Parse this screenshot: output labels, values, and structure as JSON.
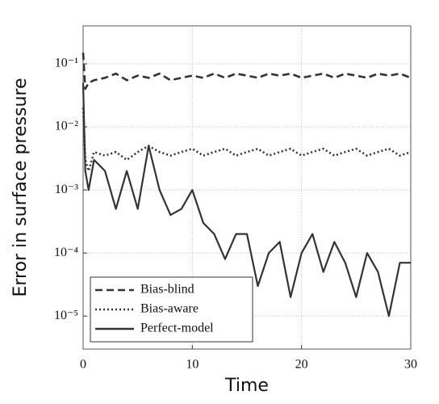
{
  "chart_data": {
    "type": "line",
    "xlabel": "Time",
    "ylabel": "Error in surface pressure",
    "x": [
      0,
      0.2,
      0.5,
      1,
      2,
      3,
      4,
      5,
      6,
      7,
      8,
      9,
      10,
      11,
      12,
      13,
      14,
      15,
      16,
      17,
      18,
      19,
      20,
      21,
      22,
      23,
      24,
      25,
      26,
      27,
      28,
      29,
      30
    ],
    "series": [
      {
        "name": "Bias-blind",
        "color": "#333333",
        "style": "dashed",
        "values": [
          0.15,
          0.04,
          0.05,
          0.055,
          0.06,
          0.07,
          0.055,
          0.065,
          0.06,
          0.07,
          0.055,
          0.06,
          0.065,
          0.06,
          0.07,
          0.06,
          0.07,
          0.065,
          0.06,
          0.07,
          0.065,
          0.07,
          0.06,
          0.065,
          0.07,
          0.06,
          0.07,
          0.065,
          0.06,
          0.07,
          0.065,
          0.07,
          0.06
        ]
      },
      {
        "name": "Bias-aware",
        "color": "#333333",
        "style": "dotted",
        "values": [
          0.02,
          0.003,
          0.002,
          0.004,
          0.0035,
          0.004,
          0.003,
          0.004,
          0.005,
          0.004,
          0.0035,
          0.004,
          0.0045,
          0.0035,
          0.004,
          0.0045,
          0.0035,
          0.004,
          0.0045,
          0.0035,
          0.004,
          0.0045,
          0.0035,
          0.004,
          0.0045,
          0.0035,
          0.004,
          0.0045,
          0.0035,
          0.004,
          0.0045,
          0.0035,
          0.004
        ]
      },
      {
        "name": "Perfect-model",
        "color": "#333333",
        "style": "solid",
        "values": [
          0.05,
          0.002,
          0.001,
          0.003,
          0.002,
          0.0005,
          0.002,
          0.0005,
          0.005,
          0.001,
          0.0004,
          0.0005,
          0.001,
          0.0003,
          0.0002,
          8e-05,
          0.0002,
          0.0002,
          3e-05,
          0.0001,
          0.00015,
          2e-05,
          0.0001,
          0.0002,
          5e-05,
          0.00015,
          7e-05,
          2e-05,
          0.0001,
          5e-05,
          1e-05,
          7e-05,
          7e-05
        ]
      }
    ],
    "xlim": [
      0,
      30
    ],
    "xticks": [
      0,
      10,
      20,
      30
    ],
    "ylim": [
      3e-06,
      0.4
    ],
    "yticks": [
      {
        "value": 0.1,
        "label": "10⁻¹"
      },
      {
        "value": 0.01,
        "label": "10⁻²"
      },
      {
        "value": 0.001,
        "label": "10⁻³"
      },
      {
        "value": 0.0001,
        "label": "10⁻⁴"
      },
      {
        "value": 1e-05,
        "label": "10⁻⁵"
      }
    ],
    "yscale": "log",
    "grid": true,
    "legend": "lower left"
  }
}
